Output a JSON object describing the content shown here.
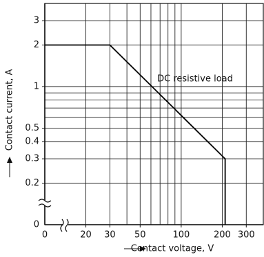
{
  "chart_data": {
    "type": "line",
    "x_log": true,
    "y_log": true,
    "xlabel": "Contact voltage, V",
    "ylabel": "Contact current, A",
    "annotation": "DC resistive load",
    "xlim": [
      10,
      400
    ],
    "ylim": [
      0.1,
      4
    ],
    "xticks": [
      20,
      30,
      50,
      100,
      200,
      300
    ],
    "yticks": [
      0.2,
      0.3,
      0.4,
      0.5,
      1,
      2,
      3
    ],
    "x_break_ticks": [
      0
    ],
    "y_break_ticks": [
      0
    ],
    "xgrid": [
      20,
      30,
      40,
      50,
      60,
      70,
      80,
      90,
      100,
      200,
      300
    ],
    "ygrid": [
      0.2,
      0.3,
      0.4,
      0.5,
      0.6,
      0.7,
      0.8,
      0.9,
      1,
      2,
      3
    ],
    "grid": true,
    "series": [
      {
        "color": "#000000",
        "x": [
          10,
          30,
          210,
          210
        ],
        "values": [
          2,
          2,
          0.3,
          0.1
        ]
      }
    ]
  }
}
